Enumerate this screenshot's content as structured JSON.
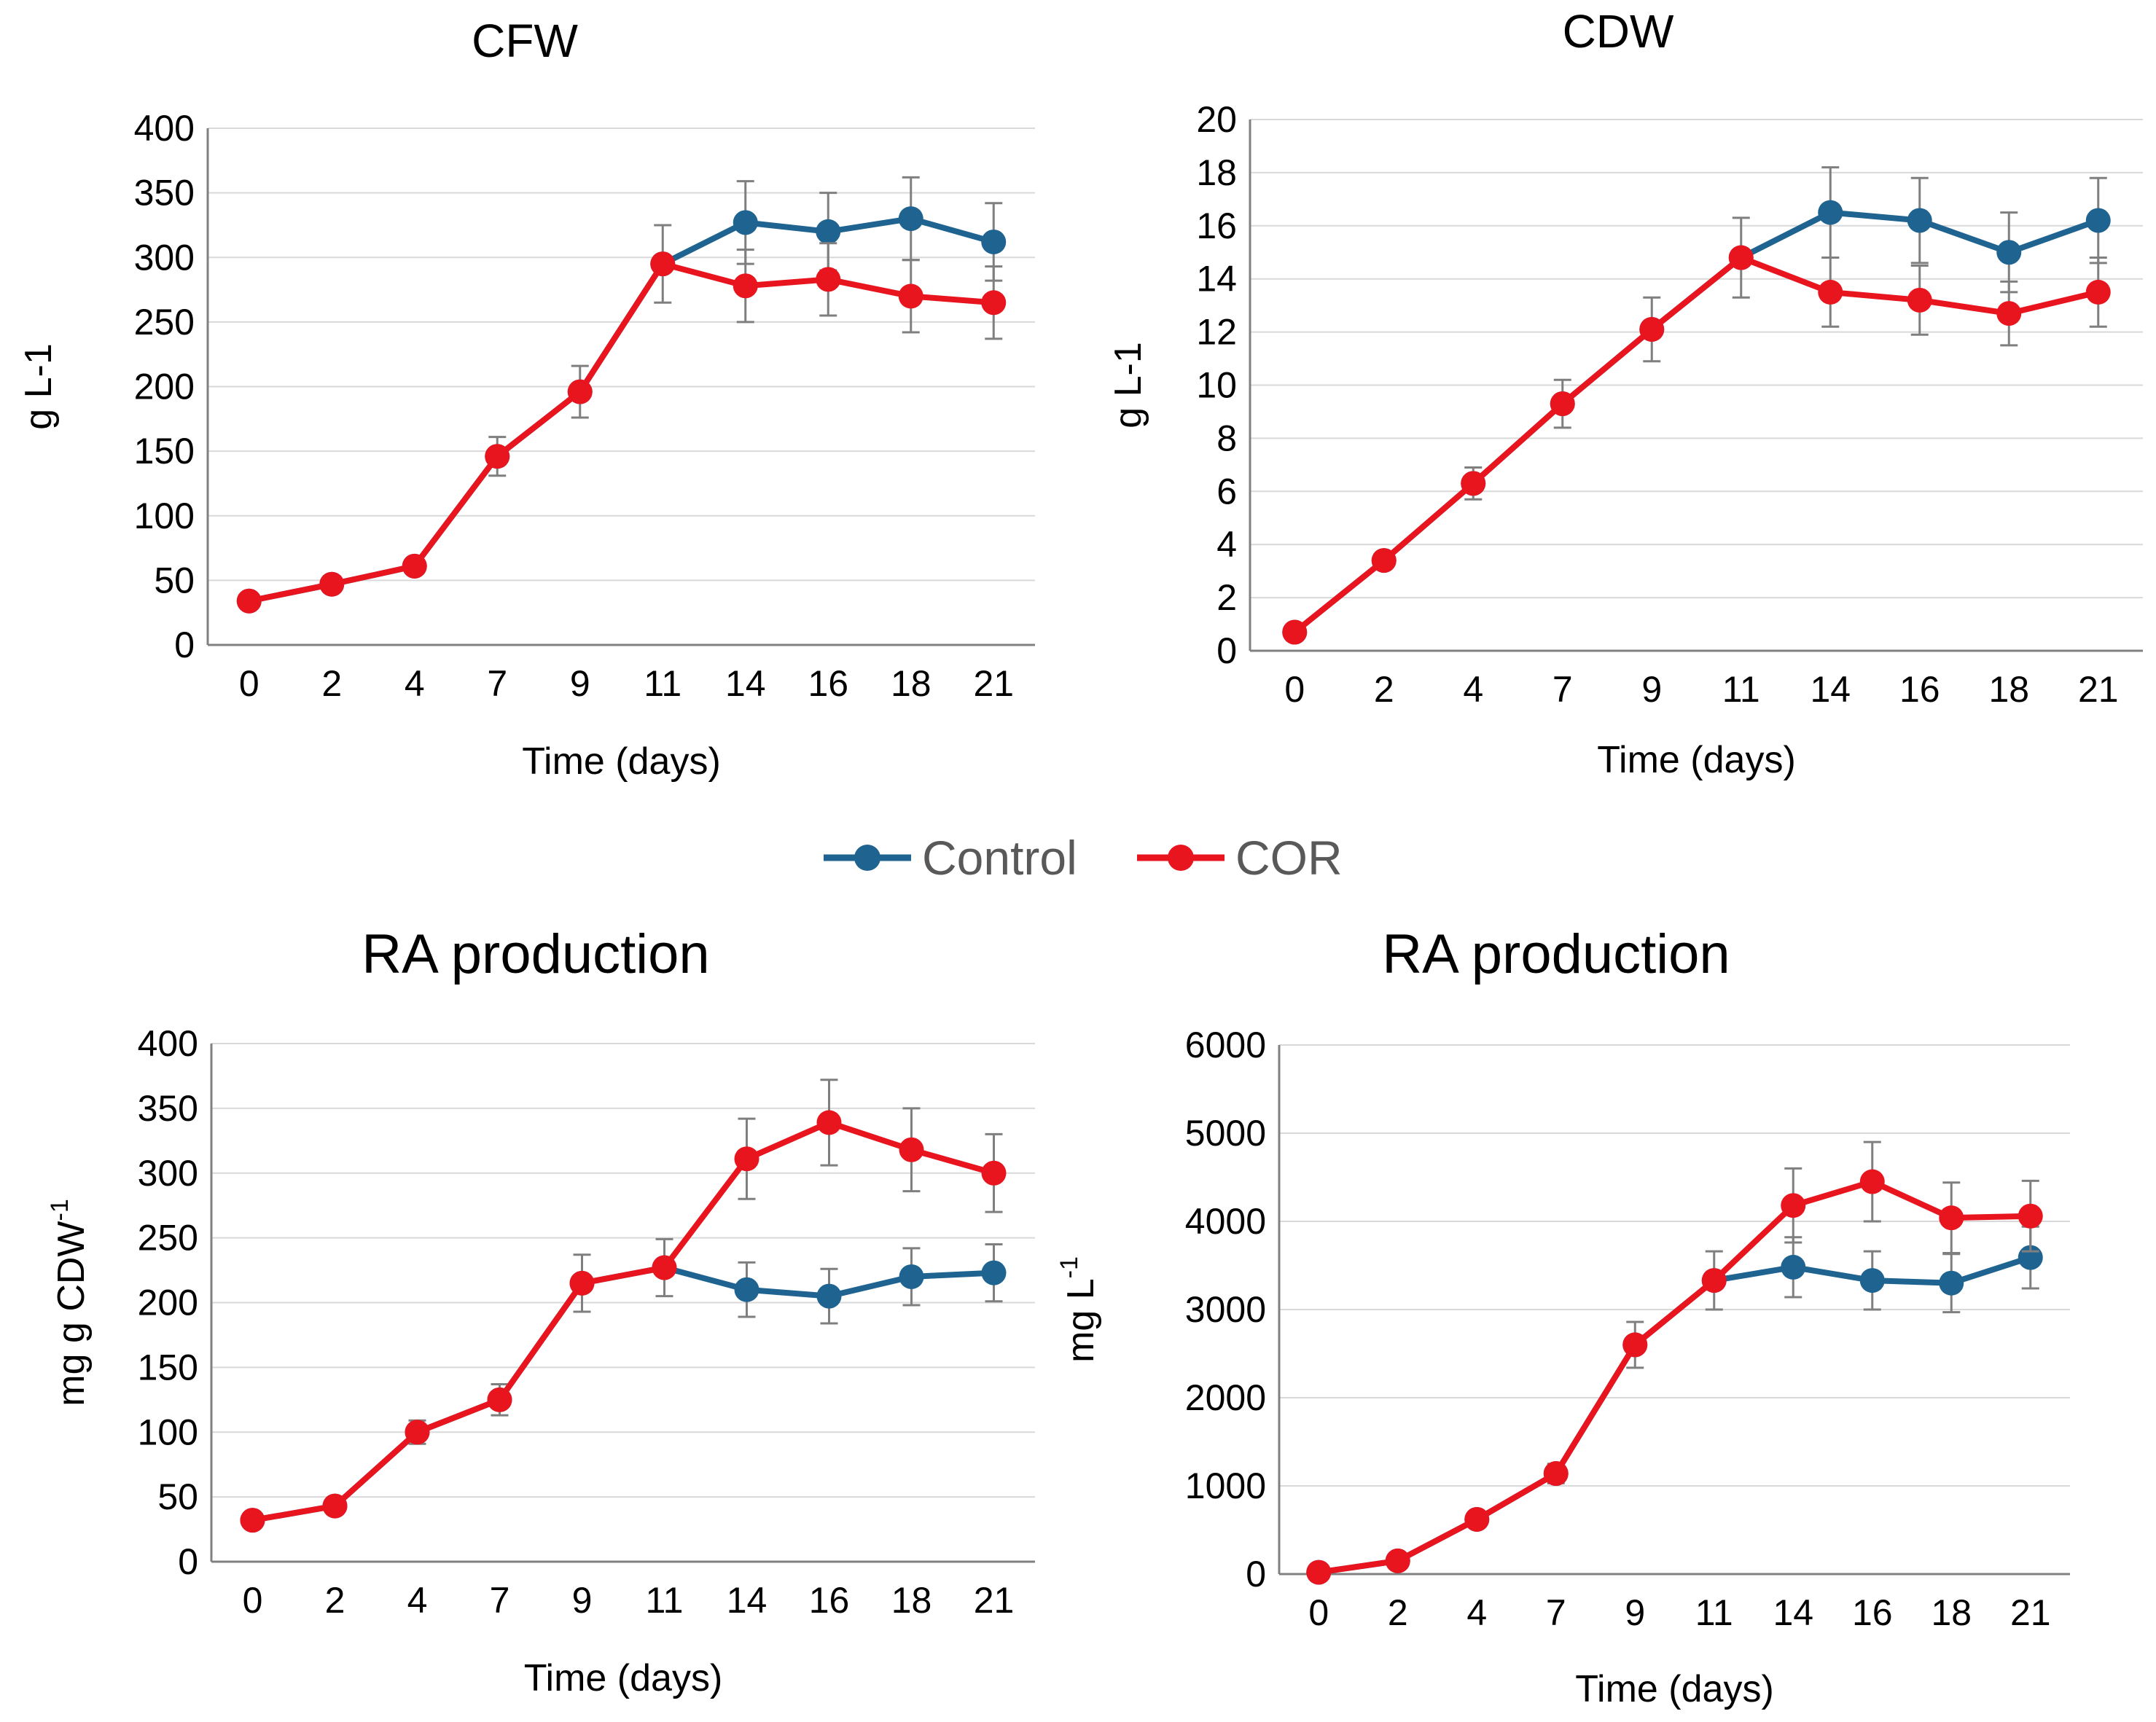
{
  "legend": {
    "entries": [
      {
        "name": "Control",
        "color": "#1f6391"
      },
      {
        "name": "COR",
        "color": "#e8141e"
      }
    ]
  },
  "chart_data": [
    {
      "type": "line",
      "title": "CFW",
      "xlabel": "Time (days)",
      "ylabel": "g L-1",
      "ylim": [
        0,
        400
      ],
      "yticks": [
        0,
        50,
        100,
        150,
        200,
        250,
        300,
        350,
        400
      ],
      "categories": [
        "0",
        "2",
        "4",
        "7",
        "9",
        "11",
        "14",
        "16",
        "18",
        "21"
      ],
      "series": [
        {
          "name": "Control",
          "values": [
            34,
            47,
            61,
            146,
            196,
            295,
            327,
            320,
            330,
            312
          ],
          "errors": [
            0,
            0,
            0,
            0,
            0,
            0,
            32,
            30,
            32,
            30
          ]
        },
        {
          "name": "COR",
          "values": [
            34,
            47,
            61,
            146,
            196,
            295,
            278,
            283,
            270,
            265
          ],
          "errors": [
            0,
            3,
            4,
            15,
            20,
            30,
            28,
            28,
            28,
            28
          ]
        }
      ]
    },
    {
      "type": "line",
      "title": "CDW",
      "xlabel": "Time (days)",
      "ylabel": "g L-1",
      "ylim": [
        0,
        20
      ],
      "yticks": [
        0,
        2,
        4,
        6,
        8,
        10,
        12,
        14,
        16,
        18,
        20
      ],
      "categories": [
        "0",
        "2",
        "4",
        "7",
        "9",
        "11",
        "14",
        "16",
        "18",
        "21"
      ],
      "series": [
        {
          "name": "Control",
          "values": [
            0.7,
            3.4,
            6.3,
            9.3,
            12.1,
            14.8,
            16.5,
            16.2,
            15.0,
            16.2
          ],
          "errors": [
            0,
            0,
            0,
            0,
            0,
            0,
            1.7,
            1.6,
            1.5,
            1.6
          ]
        },
        {
          "name": "COR",
          "values": [
            0.7,
            3.4,
            6.3,
            9.3,
            12.1,
            14.8,
            13.5,
            13.2,
            12.7,
            13.5
          ],
          "errors": [
            0,
            0.2,
            0.6,
            0.9,
            1.2,
            1.5,
            1.3,
            1.3,
            1.2,
            1.3
          ]
        }
      ]
    },
    {
      "type": "line",
      "title": "RA production",
      "xlabel": "Time (days)",
      "ylabel": "mg g CDW",
      "ylabel_sup": "-1",
      "ylim": [
        0,
        400
      ],
      "yticks": [
        0,
        50,
        100,
        150,
        200,
        250,
        300,
        350,
        400
      ],
      "categories": [
        "0",
        "2",
        "4",
        "7",
        "9",
        "11",
        "14",
        "16",
        "18",
        "21"
      ],
      "series": [
        {
          "name": "Control",
          "values": [
            32,
            43,
            100,
            125,
            215,
            227,
            210,
            205,
            220,
            223
          ],
          "errors": [
            0,
            0,
            0,
            0,
            0,
            0,
            21,
            21,
            22,
            22
          ]
        },
        {
          "name": "COR",
          "values": [
            32,
            43,
            100,
            125,
            215,
            227,
            311,
            339,
            318,
            300
          ],
          "errors": [
            0,
            3,
            9,
            12,
            22,
            22,
            31,
            33,
            32,
            30
          ]
        }
      ]
    },
    {
      "type": "line",
      "title": "RA production",
      "xlabel": "Time (days)",
      "ylabel": "mg L",
      "ylabel_sup": "-1",
      "ylim": [
        0,
        6000
      ],
      "yticks": [
        0,
        1000,
        2000,
        3000,
        4000,
        5000,
        6000
      ],
      "categories": [
        "0",
        "2",
        "4",
        "7",
        "9",
        "11",
        "14",
        "16",
        "18",
        "21"
      ],
      "series": [
        {
          "name": "Control",
          "values": [
            20,
            150,
            620,
            1140,
            2600,
            3330,
            3480,
            3330,
            3300,
            3590
          ],
          "errors": [
            0,
            0,
            0,
            0,
            0,
            0,
            340,
            330,
            330,
            350
          ]
        },
        {
          "name": "COR",
          "values": [
            20,
            150,
            620,
            1140,
            2600,
            3330,
            4180,
            4450,
            4040,
            4060
          ],
          "errors": [
            0,
            30,
            60,
            110,
            260,
            330,
            420,
            450,
            400,
            400
          ]
        }
      ]
    }
  ]
}
